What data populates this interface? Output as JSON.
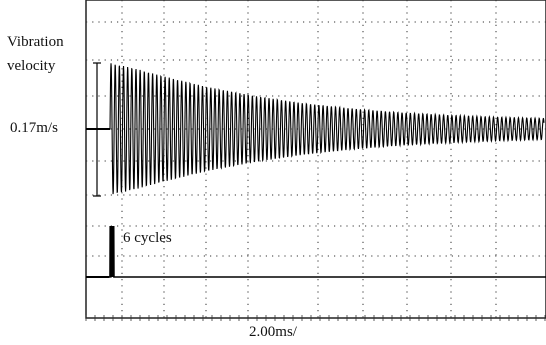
{
  "labels": {
    "quantity": "Vibration",
    "quantity2": "velocity",
    "amplitude": "0.17m/s",
    "burst": "6 cycles",
    "timebase": "2.00ms/"
  },
  "chart_data": {
    "type": "line",
    "title": "",
    "xlabel": "2.00ms/",
    "ylabel": "Vibration velocity",
    "time_per_division_ms": 2.0,
    "grid": true,
    "series": [
      {
        "channel": "upper trace",
        "description": "decaying oscillation after excitation burst",
        "amplitude_marker": "0.17m/s",
        "x_ms": [
          0.0,
          1.0,
          2.0,
          4.0,
          6.0,
          8.0,
          10.0,
          12.0,
          14.0,
          16.0,
          18.0
        ],
        "peak_fraction": [
          1.0,
          0.92,
          0.82,
          0.64,
          0.5,
          0.39,
          0.31,
          0.25,
          0.21,
          0.18,
          0.16
        ]
      },
      {
        "channel": "lower trace",
        "description": "excitation burst",
        "annotation": "6 cycles",
        "burst_cycles": 6,
        "burst_time_ms": 0.0
      }
    ]
  }
}
